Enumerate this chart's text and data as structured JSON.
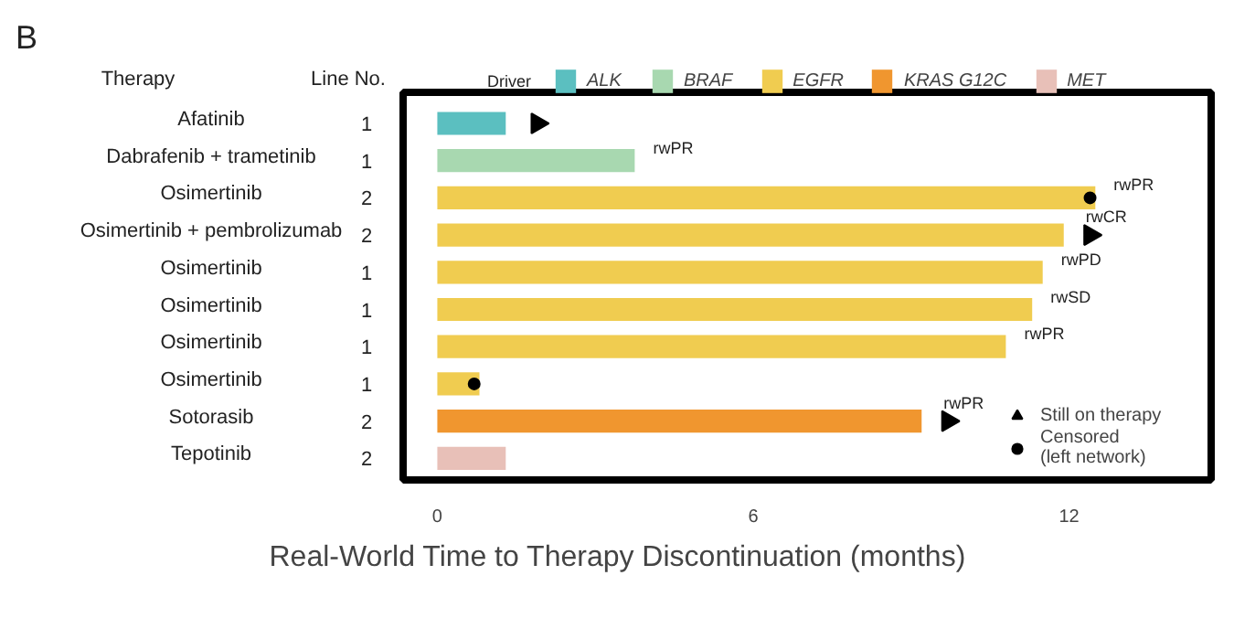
{
  "chart_data": {
    "type": "bar",
    "orientation": "horizontal",
    "title": "B",
    "xlabel": "Real-World Time to Therapy Discontinuation (months)",
    "legend_title": "Driver",
    "legend": "top",
    "categories": [
      "Afatinib",
      "Dabrafenib + trametinib",
      "Osimertinib",
      "Osimertinib + pembrolizumab",
      "Osimertinib",
      "Osimertinib",
      "Osimertinib",
      "Osimertinib",
      "Sotorasib",
      "Tepotinib"
    ],
    "annotations": [
      "Therapy",
      "Line No.",
      "1",
      "1",
      "2",
      "2",
      "1",
      "1",
      "1",
      "1",
      "2",
      "2"
    ],
    "xlim": [
      -0.65,
      14.7
    ],
    "xticks": [
      0,
      6,
      12
    ],
    "grid": false,
    "series": [
      {
        "name": "ALK",
        "color": "#5bbfc0",
        "values": [
          1.3,
          null,
          null,
          null,
          null,
          null,
          null,
          null,
          null,
          null
        ],
        "value_labels": [
          null,
          null,
          null,
          null,
          null,
          null,
          null,
          null,
          null,
          null
        ]
      },
      {
        "name": "BRAF",
        "color": "#a8d8b0",
        "values": [
          null,
          3.75,
          null,
          null,
          null,
          null,
          null,
          null,
          null,
          null
        ],
        "value_labels": [
          null,
          "rwPR",
          null,
          null,
          null,
          null,
          null,
          null,
          null,
          null
        ]
      },
      {
        "name": "EGFR",
        "color": "#f0cc50",
        "values": [
          null,
          null,
          12.5,
          11.9,
          11.5,
          11.3,
          10.8,
          0.8,
          null,
          null
        ],
        "value_labels": [
          null,
          null,
          "rwPR",
          "rwCR",
          "rwPD",
          "rwSD",
          "rwPR",
          null,
          null,
          null
        ]
      },
      {
        "name": "KRAS G12C",
        "color": "#f0962f",
        "values": [
          null,
          null,
          null,
          null,
          null,
          null,
          null,
          null,
          9.2,
          null
        ],
        "value_labels": [
          null,
          null,
          null,
          null,
          null,
          null,
          null,
          null,
          "rwPR",
          null
        ]
      },
      {
        "name": "MET",
        "color": "#e8c0b8",
        "values": [
          null,
          null,
          null,
          null,
          null,
          null,
          null,
          null,
          null,
          1.3
        ],
        "value_labels": [
          null,
          null,
          null,
          null,
          null,
          null,
          null,
          null,
          null,
          null
        ]
      },
      {
        "name": "Still on therapy",
        "type": "scatter",
        "marker": "triangle",
        "color": "#000000",
        "values": [
          1.9,
          null,
          null,
          12.4,
          null,
          null,
          null,
          null,
          9.7,
          null
        ]
      },
      {
        "name": "Censored\n(left network)",
        "type": "scatter",
        "marker": "circle",
        "color": "#000000",
        "values": [
          null,
          null,
          12.4,
          null,
          null,
          null,
          null,
          0.7,
          null,
          null
        ]
      }
    ]
  }
}
